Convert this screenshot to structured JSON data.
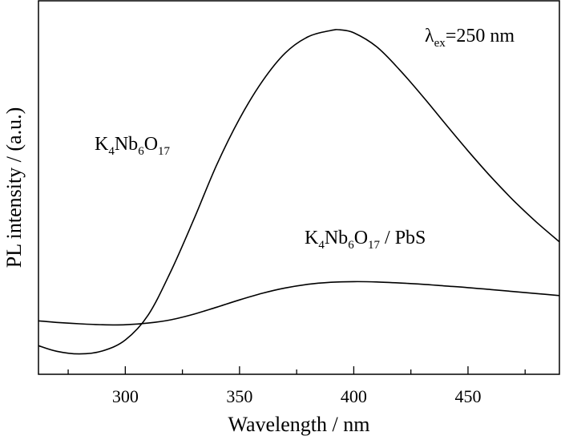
{
  "chart_data": {
    "type": "line",
    "title": "",
    "xlabel": "Wavelength / nm",
    "ylabel": "PL intensity / (a.u.)",
    "xlim": [
      262,
      490
    ],
    "ylim": [
      0,
      100
    ],
    "x_ticks": [
      300,
      350,
      400,
      450
    ],
    "x_tick_labels": [
      "300",
      "350",
      "400",
      "450"
    ],
    "y_ticks_shown": false,
    "grid": false,
    "legend": "none",
    "line_color": "#000000",
    "series": [
      {
        "name": "K4Nb6O17",
        "x": [
          262,
          270,
          280,
          290,
          300,
          310,
          320,
          330,
          340,
          350,
          360,
          370,
          380,
          390,
          394,
          400,
          410,
          420,
          430,
          440,
          450,
          460,
          470,
          480,
          490
        ],
        "y": [
          5,
          3.3,
          2.5,
          3.4,
          6.7,
          14.2,
          27.5,
          43.1,
          59.5,
          73.4,
          84.7,
          93.2,
          98.1,
          100,
          100.2,
          99.3,
          95.1,
          88.2,
          80.3,
          71.9,
          63.7,
          55.9,
          48.7,
          42.2,
          36.3
        ]
      },
      {
        "name": "K4Nb6O17 / PbS",
        "x": [
          262,
          270,
          280,
          290,
          300,
          310,
          320,
          330,
          340,
          350,
          360,
          370,
          380,
          390,
          400,
          410,
          420,
          430,
          440,
          450,
          460,
          470,
          480,
          490
        ],
        "y": [
          12.5,
          12,
          11.6,
          11.3,
          11.3,
          11.8,
          12.8,
          14.5,
          16.6,
          18.8,
          20.8,
          22.4,
          23.5,
          24.1,
          24.3,
          24.2,
          23.9,
          23.5,
          23,
          22.5,
          21.9,
          21.3,
          20.7,
          20.1
        ]
      }
    ],
    "annotations": {
      "excitation": {
        "symbol": "λ",
        "sub": "ex",
        "rest": "=250 nm"
      },
      "label_a": {
        "p1": "K",
        "s1": "4",
        "p2": "Nb",
        "s2": "6",
        "p3": "O",
        "s3": "17",
        "p4": ""
      },
      "label_b": {
        "p1": "K",
        "s1": "4",
        "p2": "Nb",
        "s2": "6",
        "p3": "O",
        "s3": "17",
        "p4": " / PbS"
      }
    }
  }
}
